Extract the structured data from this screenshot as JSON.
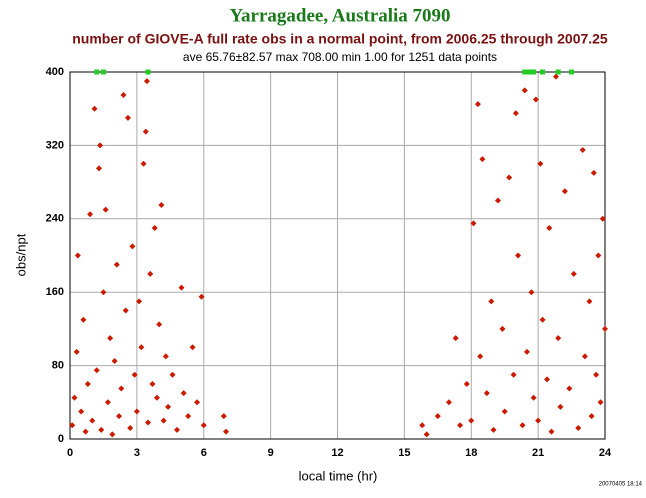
{
  "chart_data": {
    "type": "scatter",
    "title": "Yarragadee, Australia 7090",
    "subtitle": "number of GIOVE-A full rate obs in a normal point, from 2006.25 through 2007.25",
    "stats": "ave 65.76±82.57 max 708.00 min 1.00 for 1251 data points",
    "xlabel": "local time (hr)",
    "ylabel": "obs/npt",
    "timestamp": "20070405 18:14",
    "xlim": [
      0,
      24
    ],
    "xticks": [
      0,
      3,
      6,
      9,
      12,
      15,
      18,
      21,
      24
    ],
    "ylim": [
      0,
      400
    ],
    "yticks": [
      0,
      80,
      160,
      240,
      320,
      400
    ],
    "grid": true,
    "series": [
      {
        "color": "#cc1a00",
        "x": [
          0.1,
          0.2,
          0.3,
          0.35,
          0.5,
          0.6,
          0.7,
          0.8,
          0.9,
          1.0,
          1.1,
          1.2,
          1.3,
          1.35,
          1.4,
          1.5,
          1.6,
          1.7,
          1.8,
          1.9,
          2.0,
          2.1,
          2.2,
          2.3,
          2.4,
          2.5,
          2.6,
          2.7,
          2.8,
          2.9,
          3.0,
          3.1,
          3.2,
          3.3,
          3.4,
          3.45,
          3.5,
          3.6,
          3.7,
          3.8,
          3.9,
          4.0,
          4.1,
          4.2,
          4.3,
          4.4,
          4.6,
          4.8,
          5.0,
          5.1,
          5.3,
          5.5,
          5.7,
          5.9,
          6.0,
          6.9,
          7.0,
          15.8,
          16.0,
          16.5,
          17.0,
          17.3,
          17.5,
          17.8,
          18.0,
          18.1,
          18.3,
          18.4,
          18.5,
          18.7,
          18.9,
          19.0,
          19.2,
          19.4,
          19.5,
          19.7,
          19.9,
          20.0,
          20.1,
          20.3,
          20.4,
          20.5,
          20.7,
          20.8,
          20.9,
          21.0,
          21.1,
          21.2,
          21.4,
          21.5,
          21.6,
          21.8,
          21.9,
          22.0,
          22.2,
          22.4,
          22.6,
          22.8,
          23.0,
          23.1,
          23.3,
          23.4,
          23.5,
          23.6,
          23.7,
          23.8,
          23.9,
          24.0
        ],
        "values": [
          15,
          45,
          95,
          200,
          30,
          130,
          8,
          60,
          245,
          20,
          360,
          75,
          295,
          320,
          10,
          160,
          250,
          40,
          110,
          5,
          85,
          190,
          25,
          55,
          375,
          140,
          350,
          12,
          210,
          70,
          30,
          150,
          100,
          300,
          335,
          390,
          18,
          180,
          60,
          230,
          45,
          125,
          255,
          20,
          90,
          35,
          70,
          10,
          165,
          50,
          25,
          100,
          40,
          155,
          15,
          25,
          8,
          15,
          5,
          25,
          40,
          110,
          15,
          60,
          20,
          235,
          365,
          90,
          305,
          50,
          150,
          10,
          260,
          120,
          30,
          285,
          70,
          355,
          200,
          15,
          380,
          95,
          160,
          45,
          370,
          20,
          300,
          130,
          65,
          230,
          8,
          395,
          110,
          35,
          270,
          55,
          180,
          12,
          315,
          90,
          150,
          25,
          290,
          70,
          200,
          40,
          240,
          120
        ]
      },
      {
        "color": "#22cc22",
        "x": [
          1.2,
          1.5,
          3.5,
          20.4,
          20.6,
          20.8,
          21.2,
          21.9,
          22.5
        ],
        "values": [
          400,
          400,
          400,
          400,
          400,
          400,
          400,
          400,
          400
        ]
      }
    ]
  }
}
